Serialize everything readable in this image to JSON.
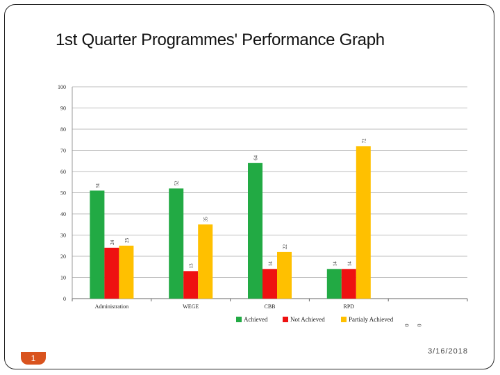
{
  "slide": {
    "title": "1st Quarter Programmes' Performance Graph",
    "date": "3/16/2018",
    "page_number": "1",
    "stray_marks": [
      "0",
      "0"
    ],
    "accent_color": "#d9531e"
  },
  "chart_data": {
    "type": "bar",
    "title": "",
    "xlabel": "",
    "ylabel": "",
    "categories": [
      "Administration",
      "WEGE",
      "CBB",
      "RPD"
    ],
    "series": [
      {
        "name": "Achieved",
        "values": [
          51,
          52,
          64,
          14
        ],
        "color": "#22aa44"
      },
      {
        "name": "Not Achieved",
        "values": [
          24,
          13,
          14,
          14
        ],
        "color": "#ee1111"
      },
      {
        "name": "Partialy Achieved",
        "values": [
          25,
          35,
          22,
          72
        ],
        "color": "#ffc000"
      }
    ],
    "ylim": [
      0,
      100
    ],
    "yticks": [
      "0",
      "10",
      "20",
      "30",
      "40",
      "50",
      "60",
      "70",
      "80",
      "90",
      "100"
    ],
    "grid": true,
    "legend": "bottom"
  }
}
